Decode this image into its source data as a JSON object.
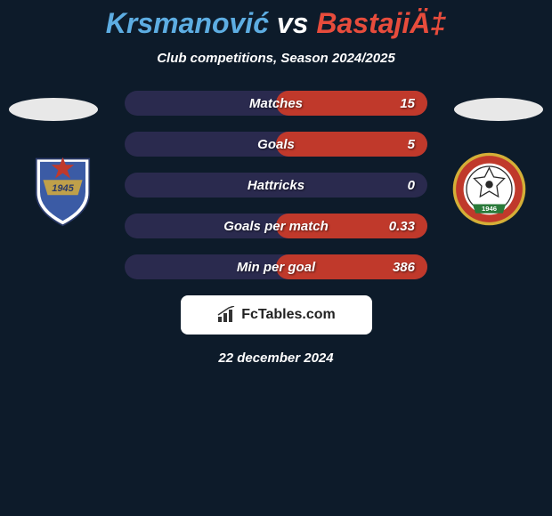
{
  "title": {
    "player1": "Krsmanović",
    "vs": "vs",
    "player2": "BastajiÄ‡"
  },
  "subtitle": "Club competitions, Season 2024/2025",
  "colors": {
    "player1": "#5dade2",
    "player2": "#e74c3c",
    "bar_bg": "#2a2a4e",
    "background": "#0d1b2a",
    "ellipse": "#e8e8e8"
  },
  "badges": {
    "left": {
      "name": "spartak-badge",
      "shield_color": "#3b5ba5",
      "shield_outline": "#ffffff",
      "banner_color": "#bfa04a",
      "star_color": "#c0392b",
      "year": "1945"
    },
    "right": {
      "name": "napredak-badge",
      "circle_outer": "#d4af37",
      "circle_ring": "#c0392b",
      "ball_color": "#ffffff",
      "year": "1946"
    }
  },
  "stats": [
    {
      "label": "Matches",
      "right_value": "15",
      "right_fill_pct": 50,
      "right_color": "#c0392b"
    },
    {
      "label": "Goals",
      "right_value": "5",
      "right_fill_pct": 50,
      "right_color": "#c0392b"
    },
    {
      "label": "Hattricks",
      "right_value": "0",
      "right_fill_pct": 0,
      "right_color": "#c0392b"
    },
    {
      "label": "Goals per match",
      "right_value": "0.33",
      "right_fill_pct": 50,
      "right_color": "#c0392b"
    },
    {
      "label": "Min per goal",
      "right_value": "386",
      "right_fill_pct": 50,
      "right_color": "#c0392b"
    }
  ],
  "footer": {
    "brand": "FcTables.com"
  },
  "date": "22 december 2024"
}
